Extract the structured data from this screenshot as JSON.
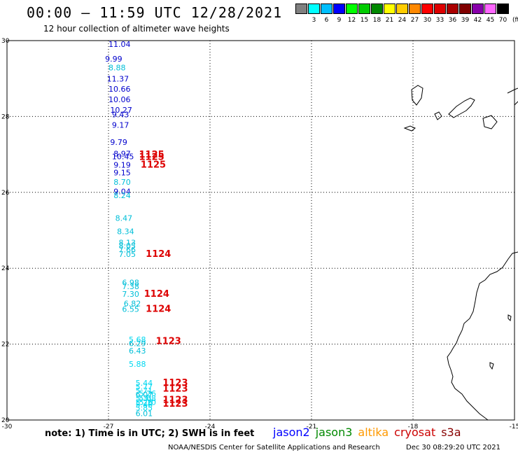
{
  "header": {
    "title": "00:00 — 11:59 UTC 12/28/2021",
    "subtitle": "12 hour collection of altimeter wave heights"
  },
  "legend": {
    "unit": "(ft)",
    "bins": [
      {
        "label": "",
        "color": "#808080"
      },
      {
        "label": "3",
        "color": "#00ffff"
      },
      {
        "label": "6",
        "color": "#00bfff"
      },
      {
        "label": "9",
        "color": "#0000ff"
      },
      {
        "label": "12",
        "color": "#00ff00"
      },
      {
        "label": "15",
        "color": "#00cc00"
      },
      {
        "label": "18",
        "color": "#008800"
      },
      {
        "label": "21",
        "color": "#ffff00"
      },
      {
        "label": "24",
        "color": "#ffcc00"
      },
      {
        "label": "27",
        "color": "#ff8800"
      },
      {
        "label": "30",
        "color": "#ff0000"
      },
      {
        "label": "33",
        "color": "#dd0000"
      },
      {
        "label": "36",
        "color": "#aa0000"
      },
      {
        "label": "39",
        "color": "#800000"
      },
      {
        "label": "42",
        "color": "#8800aa"
      },
      {
        "label": "45",
        "color": "#ff66ff"
      },
      {
        "label": "70",
        "color": "#000000"
      }
    ]
  },
  "map": {
    "lon_range": [
      -30,
      -15
    ],
    "lat_range": [
      20,
      30
    ],
    "x_ticks": [
      "-30",
      "-27",
      "-24",
      "-21",
      "-18",
      "-15"
    ],
    "y_ticks": [
      "20",
      "22",
      "24",
      "26",
      "28",
      "30"
    ],
    "wave_heights": [
      {
        "lon": -27.0,
        "lat": 29.83,
        "value": "11.04",
        "color": "#0000cc"
      },
      {
        "lon": -27.1,
        "lat": 29.45,
        "value": "9.99",
        "color": "#0000cc"
      },
      {
        "lon": -27.0,
        "lat": 29.22,
        "value": "8.88",
        "color": "#00bfd8"
      },
      {
        "lon": -27.05,
        "lat": 28.92,
        "value": "11.37",
        "color": "#0000cc"
      },
      {
        "lon": -27.0,
        "lat": 28.65,
        "value": "10.66",
        "color": "#0000cc"
      },
      {
        "lon": -27.0,
        "lat": 28.38,
        "value": "10.06",
        "color": "#0000cc"
      },
      {
        "lon": -26.95,
        "lat": 28.1,
        "value": "10.27",
        "color": "#0000cc"
      },
      {
        "lon": -26.9,
        "lat": 27.98,
        "value": "9.43",
        "color": "#0000cc"
      },
      {
        "lon": -26.9,
        "lat": 27.7,
        "value": "9.17",
        "color": "#0000cc"
      },
      {
        "lon": -26.95,
        "lat": 27.25,
        "value": "9.79",
        "color": "#0000cc"
      },
      {
        "lon": -26.85,
        "lat": 26.95,
        "value": "8.97",
        "color": "#0000cc"
      },
      {
        "lon": -26.9,
        "lat": 26.87,
        "value": "10.45",
        "color": "#0000cc"
      },
      {
        "lon": -26.85,
        "lat": 26.65,
        "value": "9.19",
        "color": "#0000cc"
      },
      {
        "lon": -26.85,
        "lat": 26.45,
        "value": "9.15",
        "color": "#0000cc"
      },
      {
        "lon": -26.85,
        "lat": 26.2,
        "value": "8.70",
        "color": "#00bfd8"
      },
      {
        "lon": -26.85,
        "lat": 25.95,
        "value": "9.04",
        "color": "#0000cc"
      },
      {
        "lon": -26.85,
        "lat": 25.85,
        "value": "8.24",
        "color": "#00bfd8"
      },
      {
        "lon": -26.8,
        "lat": 25.25,
        "value": "8.47",
        "color": "#00bfd8"
      },
      {
        "lon": -26.75,
        "lat": 24.9,
        "value": "8.34",
        "color": "#00bfd8"
      },
      {
        "lon": -26.7,
        "lat": 24.6,
        "value": "8.13",
        "color": "#00bfd8"
      },
      {
        "lon": -26.7,
        "lat": 24.52,
        "value": "8.05",
        "color": "#00bfd8"
      },
      {
        "lon": -26.7,
        "lat": 24.42,
        "value": "7.66",
        "color": "#00bfd8"
      },
      {
        "lon": -26.7,
        "lat": 24.3,
        "value": "7.05",
        "color": "#00bfd8"
      },
      {
        "lon": -26.6,
        "lat": 23.55,
        "value": "6.98",
        "color": "#00bfd8"
      },
      {
        "lon": -26.6,
        "lat": 23.45,
        "value": "7.38",
        "color": "#00bfd8"
      },
      {
        "lon": -26.6,
        "lat": 23.25,
        "value": "7.30",
        "color": "#00bfd8"
      },
      {
        "lon": -26.55,
        "lat": 23.0,
        "value": "6.82",
        "color": "#00bfd8"
      },
      {
        "lon": -26.6,
        "lat": 22.85,
        "value": "6.55",
        "color": "#00bfd8"
      },
      {
        "lon": -26.4,
        "lat": 22.05,
        "value": "5.68",
        "color": "#00d8f0"
      },
      {
        "lon": -26.4,
        "lat": 21.95,
        "value": "6.29",
        "color": "#00bfd8"
      },
      {
        "lon": -26.4,
        "lat": 21.75,
        "value": "6.43",
        "color": "#00bfd8"
      },
      {
        "lon": -26.4,
        "lat": 21.4,
        "value": "5.88",
        "color": "#00d8f0"
      },
      {
        "lon": -26.2,
        "lat": 20.9,
        "value": "5.44",
        "color": "#00d8f0"
      },
      {
        "lon": -26.2,
        "lat": 20.8,
        "value": "5.77",
        "color": "#00d8f0"
      },
      {
        "lon": -26.2,
        "lat": 20.7,
        "value": "5.71",
        "color": "#00d8f0"
      },
      {
        "lon": -26.2,
        "lat": 20.6,
        "value": "6.07",
        "color": "#00bfd8"
      },
      {
        "lon": -26.2,
        "lat": 20.5,
        "value": "5.31",
        "color": "#00d8f0"
      },
      {
        "lon": -26.2,
        "lat": 20.4,
        "value": "5.26",
        "color": "#00d8f0"
      },
      {
        "lon": -26.2,
        "lat": 20.33,
        "value": "5.46",
        "color": "#00d8f0"
      },
      {
        "lon": -26.2,
        "lat": 20.25,
        "value": "5.85",
        "color": "#00d8f0"
      },
      {
        "lon": -26.2,
        "lat": 20.1,
        "value": "6.01",
        "color": "#00bfd8"
      },
      {
        "lon": -26.1,
        "lat": 20.63,
        "value": "5.26",
        "color": "#00d8f0"
      },
      {
        "lon": -26.1,
        "lat": 20.5,
        "value": "5.68",
        "color": "#00d8f0"
      },
      {
        "lon": -26.1,
        "lat": 20.4,
        "value": "5.10",
        "color": "#00d8f0"
      }
    ],
    "pass_labels": [
      {
        "lon": -26.1,
        "lat": 26.92,
        "value": "1125"
      },
      {
        "lon": -26.1,
        "lat": 26.85,
        "value": "1125"
      },
      {
        "lon": -26.05,
        "lat": 26.65,
        "value": "1125"
      },
      {
        "lon": -25.9,
        "lat": 24.3,
        "value": "1124"
      },
      {
        "lon": -25.95,
        "lat": 23.25,
        "value": "1124"
      },
      {
        "lon": -25.9,
        "lat": 22.85,
        "value": "1124"
      },
      {
        "lon": -25.6,
        "lat": 22.0,
        "value": "1123"
      },
      {
        "lon": -25.4,
        "lat": 20.9,
        "value": "1123"
      },
      {
        "lon": -25.4,
        "lat": 20.75,
        "value": "1123"
      },
      {
        "lon": -25.4,
        "lat": 20.45,
        "value": "1123"
      },
      {
        "lon": -25.4,
        "lat": 20.35,
        "value": "1123"
      }
    ]
  },
  "footer": {
    "note": "note: 1) Time is in UTC; 2) SWH is in feet",
    "satellites": [
      {
        "name": "jason2",
        "color": "#0000ff"
      },
      {
        "name": "jason3",
        "color": "#008800"
      },
      {
        "name": "altika",
        "color": "#ff9900"
      },
      {
        "name": "cryosat",
        "color": "#cc0000"
      },
      {
        "name": "s3a",
        "color": "#880000"
      }
    ],
    "credit": "NOAA/NESDIS Center for Satellite Applications and Research",
    "timestamp": "Dec 30 08:29:20 UTC 2021"
  }
}
